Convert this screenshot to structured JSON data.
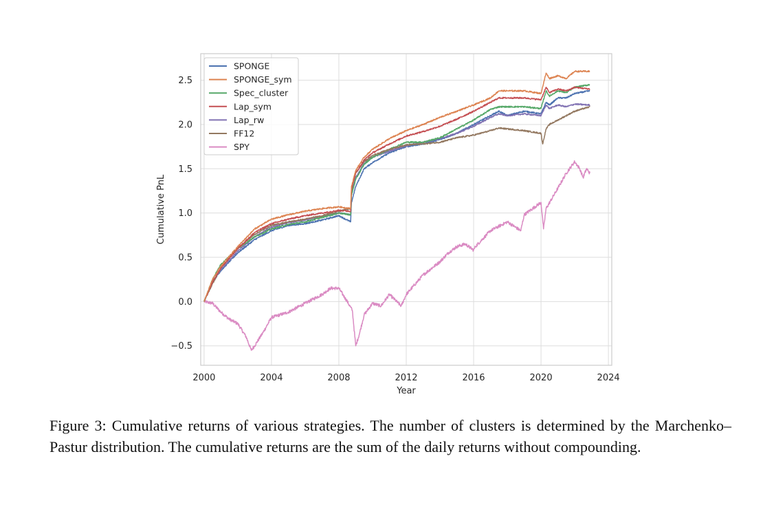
{
  "caption": "Figure 3: Cumulative returns of various strategies. The number of clusters is determined by the Marchenko–Pastur distribution. The cumulative returns are the sum of the daily returns without compounding.",
  "chart_data": {
    "type": "line",
    "xlabel": "Year",
    "ylabel": "Cumulative PnL",
    "xlim": [
      1999.8,
      2024.2
    ],
    "ylim": [
      -0.72,
      2.8
    ],
    "xticks": [
      2000,
      2004,
      2008,
      2012,
      2016,
      2020,
      2024
    ],
    "yticks": [
      -0.5,
      0.0,
      0.5,
      1.0,
      1.5,
      2.0,
      2.5
    ],
    "ytick_labels": [
      "−0.5",
      "0.0",
      "0.5",
      "1.0",
      "1.5",
      "2.0",
      "2.5"
    ],
    "grid": true,
    "legend_position": "top-left",
    "series": [
      {
        "name": "SPONGE",
        "color": "#4c72b0",
        "x": [
          2000.0,
          2000.5,
          2001.0,
          2002.0,
          2003.0,
          2004.0,
          2005.0,
          2006.0,
          2007.0,
          2008.0,
          2008.7,
          2008.75,
          2009.0,
          2009.5,
          2010.0,
          2011.0,
          2012.0,
          2013.0,
          2014.0,
          2015.0,
          2016.0,
          2017.0,
          2017.5,
          2018.0,
          2019.0,
          2020.0,
          2020.3,
          2020.5,
          2021.0,
          2021.5,
          2022.0,
          2022.9
        ],
        "values": [
          0.0,
          0.22,
          0.35,
          0.55,
          0.7,
          0.8,
          0.86,
          0.88,
          0.92,
          0.97,
          0.9,
          1.12,
          1.3,
          1.5,
          1.57,
          1.68,
          1.75,
          1.78,
          1.83,
          1.9,
          2.0,
          2.1,
          2.15,
          2.1,
          2.15,
          2.12,
          2.25,
          2.22,
          2.3,
          2.3,
          2.35,
          2.38
        ]
      },
      {
        "name": "SPONGE_sym",
        "color": "#dd8452",
        "x": [
          2000.0,
          2000.5,
          2001.0,
          2002.0,
          2003.0,
          2004.0,
          2005.0,
          2006.0,
          2007.0,
          2008.0,
          2008.7,
          2008.75,
          2009.0,
          2009.5,
          2010.0,
          2011.0,
          2012.0,
          2013.0,
          2014.0,
          2015.0,
          2016.0,
          2017.0,
          2017.5,
          2018.0,
          2019.0,
          2020.0,
          2020.3,
          2020.5,
          2021.0,
          2021.5,
          2022.0,
          2022.9
        ],
        "values": [
          0.0,
          0.25,
          0.4,
          0.62,
          0.82,
          0.93,
          0.98,
          1.02,
          1.05,
          1.07,
          1.05,
          1.3,
          1.48,
          1.63,
          1.72,
          1.84,
          1.93,
          2.0,
          2.08,
          2.15,
          2.22,
          2.3,
          2.38,
          2.38,
          2.38,
          2.35,
          2.58,
          2.52,
          2.55,
          2.52,
          2.6,
          2.6
        ]
      },
      {
        "name": "Spec_cluster",
        "color": "#55a868",
        "x": [
          2000.0,
          2000.5,
          2001.0,
          2002.0,
          2003.0,
          2004.0,
          2005.0,
          2006.0,
          2007.0,
          2008.0,
          2008.7,
          2008.75,
          2009.0,
          2009.5,
          2010.0,
          2011.0,
          2012.0,
          2013.0,
          2014.0,
          2015.0,
          2016.0,
          2017.0,
          2017.5,
          2018.0,
          2019.0,
          2020.0,
          2020.3,
          2020.5,
          2021.0,
          2021.5,
          2022.0,
          2022.9
        ],
        "values": [
          0.0,
          0.25,
          0.42,
          0.6,
          0.73,
          0.82,
          0.87,
          0.9,
          0.95,
          1.0,
          0.98,
          1.2,
          1.38,
          1.55,
          1.63,
          1.72,
          1.8,
          1.8,
          1.85,
          1.95,
          2.05,
          2.17,
          2.2,
          2.2,
          2.2,
          2.18,
          2.38,
          2.32,
          2.38,
          2.36,
          2.42,
          2.45
        ]
      },
      {
        "name": "Lap_sym",
        "color": "#c44e52",
        "x": [
          2000.0,
          2000.5,
          2001.0,
          2002.0,
          2003.0,
          2004.0,
          2005.0,
          2006.0,
          2007.0,
          2008.0,
          2008.7,
          2008.75,
          2009.0,
          2009.5,
          2010.0,
          2011.0,
          2012.0,
          2013.0,
          2014.0,
          2015.0,
          2016.0,
          2017.0,
          2017.5,
          2018.0,
          2019.0,
          2020.0,
          2020.3,
          2020.5,
          2021.0,
          2021.5,
          2022.0,
          2022.9
        ],
        "values": [
          0.0,
          0.22,
          0.38,
          0.6,
          0.78,
          0.88,
          0.93,
          0.97,
          1.0,
          1.03,
          1.02,
          1.28,
          1.45,
          1.6,
          1.68,
          1.78,
          1.87,
          1.92,
          1.98,
          2.06,
          2.15,
          2.25,
          2.3,
          2.3,
          2.3,
          2.28,
          2.42,
          2.36,
          2.4,
          2.38,
          2.42,
          2.4
        ]
      },
      {
        "name": "Lap_rw",
        "color": "#8172b3",
        "x": [
          2000.0,
          2000.5,
          2001.0,
          2002.0,
          2003.0,
          2004.0,
          2005.0,
          2006.0,
          2007.0,
          2008.0,
          2008.7,
          2008.75,
          2009.0,
          2009.5,
          2010.0,
          2011.0,
          2012.0,
          2013.0,
          2014.0,
          2015.0,
          2016.0,
          2017.0,
          2017.5,
          2018.0,
          2019.0,
          2020.0,
          2020.3,
          2020.5,
          2021.0,
          2021.5,
          2022.0,
          2022.9
        ],
        "values": [
          0.0,
          0.23,
          0.36,
          0.57,
          0.73,
          0.84,
          0.89,
          0.92,
          0.96,
          1.0,
          0.98,
          1.22,
          1.4,
          1.56,
          1.63,
          1.7,
          1.76,
          1.8,
          1.84,
          1.9,
          1.98,
          2.08,
          2.12,
          2.1,
          2.12,
          2.1,
          2.22,
          2.18,
          2.22,
          2.2,
          2.23,
          2.22
        ]
      },
      {
        "name": "FF12",
        "color": "#937860",
        "x": [
          2000.0,
          2000.5,
          2001.0,
          2002.0,
          2003.0,
          2004.0,
          2005.0,
          2006.0,
          2007.0,
          2008.0,
          2008.7,
          2008.75,
          2009.0,
          2009.5,
          2010.0,
          2011.0,
          2012.0,
          2013.0,
          2014.0,
          2015.0,
          2016.0,
          2017.0,
          2017.5,
          2018.0,
          2019.0,
          2020.0,
          2020.1,
          2020.3,
          2020.5,
          2021.0,
          2021.5,
          2022.0,
          2022.9
        ],
        "values": [
          0.0,
          0.2,
          0.38,
          0.6,
          0.76,
          0.86,
          0.9,
          0.93,
          0.97,
          1.02,
          1.05,
          1.25,
          1.45,
          1.58,
          1.65,
          1.72,
          1.77,
          1.78,
          1.8,
          1.85,
          1.88,
          1.93,
          1.96,
          1.95,
          1.93,
          1.9,
          1.78,
          1.95,
          2.0,
          2.05,
          2.1,
          2.15,
          2.2
        ]
      },
      {
        "name": "SPY",
        "color": "#da8bc3",
        "x": [
          2000.0,
          2000.5,
          2001.0,
          2001.5,
          2002.0,
          2002.5,
          2002.8,
          2003.0,
          2003.5,
          2004.0,
          2005.0,
          2006.0,
          2007.0,
          2007.5,
          2008.0,
          2008.5,
          2008.8,
          2009.0,
          2009.2,
          2009.5,
          2010.0,
          2010.5,
          2011.0,
          2011.7,
          2012.0,
          2013.0,
          2014.0,
          2014.5,
          2015.0,
          2015.5,
          2016.0,
          2016.1,
          2016.5,
          2017.0,
          2018.0,
          2018.8,
          2019.0,
          2019.5,
          2020.0,
          2020.15,
          2020.3,
          2021.0,
          2021.5,
          2022.0,
          2022.3,
          2022.5,
          2022.7,
          2022.9
        ],
        "values": [
          0.0,
          -0.02,
          -0.12,
          -0.2,
          -0.25,
          -0.4,
          -0.55,
          -0.5,
          -0.35,
          -0.18,
          -0.12,
          -0.02,
          0.08,
          0.15,
          0.15,
          0.0,
          -0.1,
          -0.5,
          -0.38,
          -0.15,
          -0.02,
          -0.05,
          0.08,
          -0.05,
          0.08,
          0.3,
          0.45,
          0.55,
          0.62,
          0.65,
          0.58,
          0.62,
          0.7,
          0.8,
          0.9,
          0.8,
          0.98,
          1.05,
          1.12,
          0.82,
          1.05,
          1.28,
          1.45,
          1.58,
          1.5,
          1.4,
          1.5,
          1.45
        ]
      }
    ]
  }
}
